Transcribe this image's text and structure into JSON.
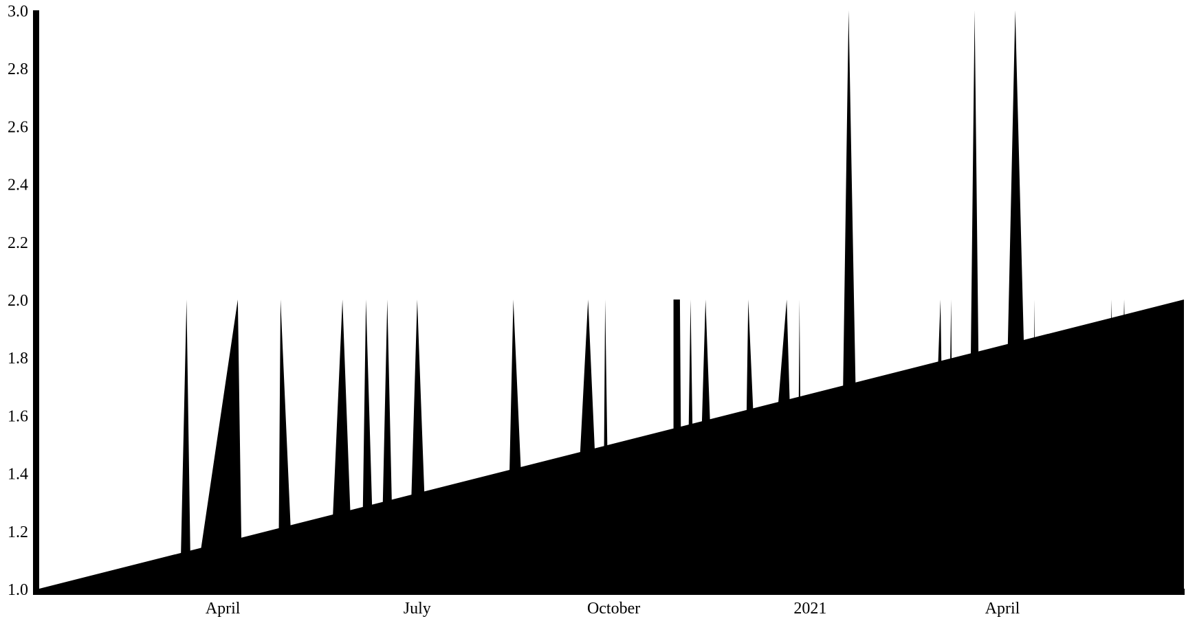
{
  "chart_data": {
    "type": "area",
    "title": "",
    "xlabel": "",
    "ylabel": "",
    "x_ticks": [
      {
        "date": "2020-04-01",
        "label": "April"
      },
      {
        "date": "2020-07-01",
        "label": "July"
      },
      {
        "date": "2020-10-01",
        "label": "October"
      },
      {
        "date": "2021-01-01",
        "label": "2021"
      },
      {
        "date": "2021-04-01",
        "label": "April"
      }
    ],
    "y_ticks": [
      1.0,
      1.2,
      1.4,
      1.6,
      1.8,
      2.0,
      2.2,
      2.4,
      2.6,
      2.8,
      3.0
    ],
    "y_tick_labels": [
      "1.0",
      "1.2",
      "1.4",
      "1.6",
      "1.8",
      "2.0",
      "2.2",
      "2.4",
      "2.6",
      "2.8",
      "3.0"
    ],
    "xlim": [
      "2020-01-06",
      "2021-06-25"
    ],
    "ylim": [
      1.0,
      3.0
    ],
    "grid": false,
    "legend": "none",
    "series": [
      {
        "fill": "#000000",
        "points": [
          [
            "2020-01-06",
            1
          ],
          [
            "2020-03-12",
            1
          ],
          [
            "2020-03-15",
            2
          ],
          [
            "2020-03-17",
            1
          ],
          [
            "2020-03-19",
            1
          ],
          [
            "2020-04-08",
            2
          ],
          [
            "2020-04-10",
            1
          ],
          [
            "2020-04-27",
            1
          ],
          [
            "2020-04-28",
            2
          ],
          [
            "2020-05-04",
            1
          ],
          [
            "2020-05-21",
            1
          ],
          [
            "2020-05-27",
            2
          ],
          [
            "2020-06-01",
            1
          ],
          [
            "2020-06-05",
            1
          ],
          [
            "2020-06-07",
            2
          ],
          [
            "2020-06-11",
            1
          ],
          [
            "2020-06-14",
            1
          ],
          [
            "2020-06-17",
            2
          ],
          [
            "2020-06-20",
            1
          ],
          [
            "2020-06-27",
            1
          ],
          [
            "2020-07-01",
            2
          ],
          [
            "2020-07-06",
            1
          ],
          [
            "2020-08-12",
            1
          ],
          [
            "2020-08-15",
            2
          ],
          [
            "2020-08-21",
            1
          ],
          [
            "2020-09-12",
            1
          ],
          [
            "2020-09-19",
            2
          ],
          [
            "2020-09-25",
            1
          ],
          [
            "2020-09-26",
            1
          ],
          [
            "2020-09-27",
            2
          ],
          [
            "2020-09-29",
            1
          ],
          [
            "2020-10-29",
            1
          ],
          [
            "2020-10-29",
            2
          ],
          [
            "2020-11-01",
            2
          ],
          [
            "2020-11-02",
            1
          ],
          [
            "2020-11-04",
            1
          ],
          [
            "2020-11-06",
            2
          ],
          [
            "2020-11-08",
            1
          ],
          [
            "2020-11-09",
            1
          ],
          [
            "2020-11-13",
            2
          ],
          [
            "2020-11-18",
            1
          ],
          [
            "2020-12-01",
            1
          ],
          [
            "2020-12-03",
            2
          ],
          [
            "2020-12-09",
            1
          ],
          [
            "2020-12-10",
            1
          ],
          [
            "2020-12-21",
            2
          ],
          [
            "2020-12-25",
            1
          ],
          [
            "2020-12-26",
            1
          ],
          [
            "2020-12-27",
            2
          ],
          [
            "2020-12-28",
            1
          ],
          [
            "2021-01-15",
            1
          ],
          [
            "2021-01-19",
            3
          ],
          [
            "2021-01-24",
            1
          ],
          [
            "2021-02-26",
            1
          ],
          [
            "2021-03-03",
            2
          ],
          [
            "2021-03-05",
            1
          ],
          [
            "2021-03-06",
            1
          ],
          [
            "2021-03-08",
            2
          ],
          [
            "2021-03-09",
            1
          ],
          [
            "2021-03-16",
            1
          ],
          [
            "2021-03-19",
            3
          ],
          [
            "2021-03-22",
            1
          ],
          [
            "2021-04-01",
            1
          ],
          [
            "2021-04-07",
            3
          ],
          [
            "2021-04-14",
            1
          ],
          [
            "2021-04-15",
            1
          ],
          [
            "2021-04-16",
            2
          ],
          [
            "2021-04-17",
            1
          ],
          [
            "2021-05-20",
            1
          ],
          [
            "2021-05-22",
            2
          ],
          [
            "2021-05-24",
            1
          ],
          [
            "2021-05-25",
            1
          ],
          [
            "2021-05-28",
            2
          ],
          [
            "2021-05-31",
            1
          ],
          [
            "2021-06-23",
            1
          ],
          [
            "2021-06-25",
            2
          ],
          [
            "2021-06-25",
            1
          ]
        ]
      },
      {
        "fill": "#000000",
        "points": [
          [
            "2020-01-06",
            1
          ],
          [
            "2021-06-25",
            2
          ]
        ]
      }
    ]
  }
}
